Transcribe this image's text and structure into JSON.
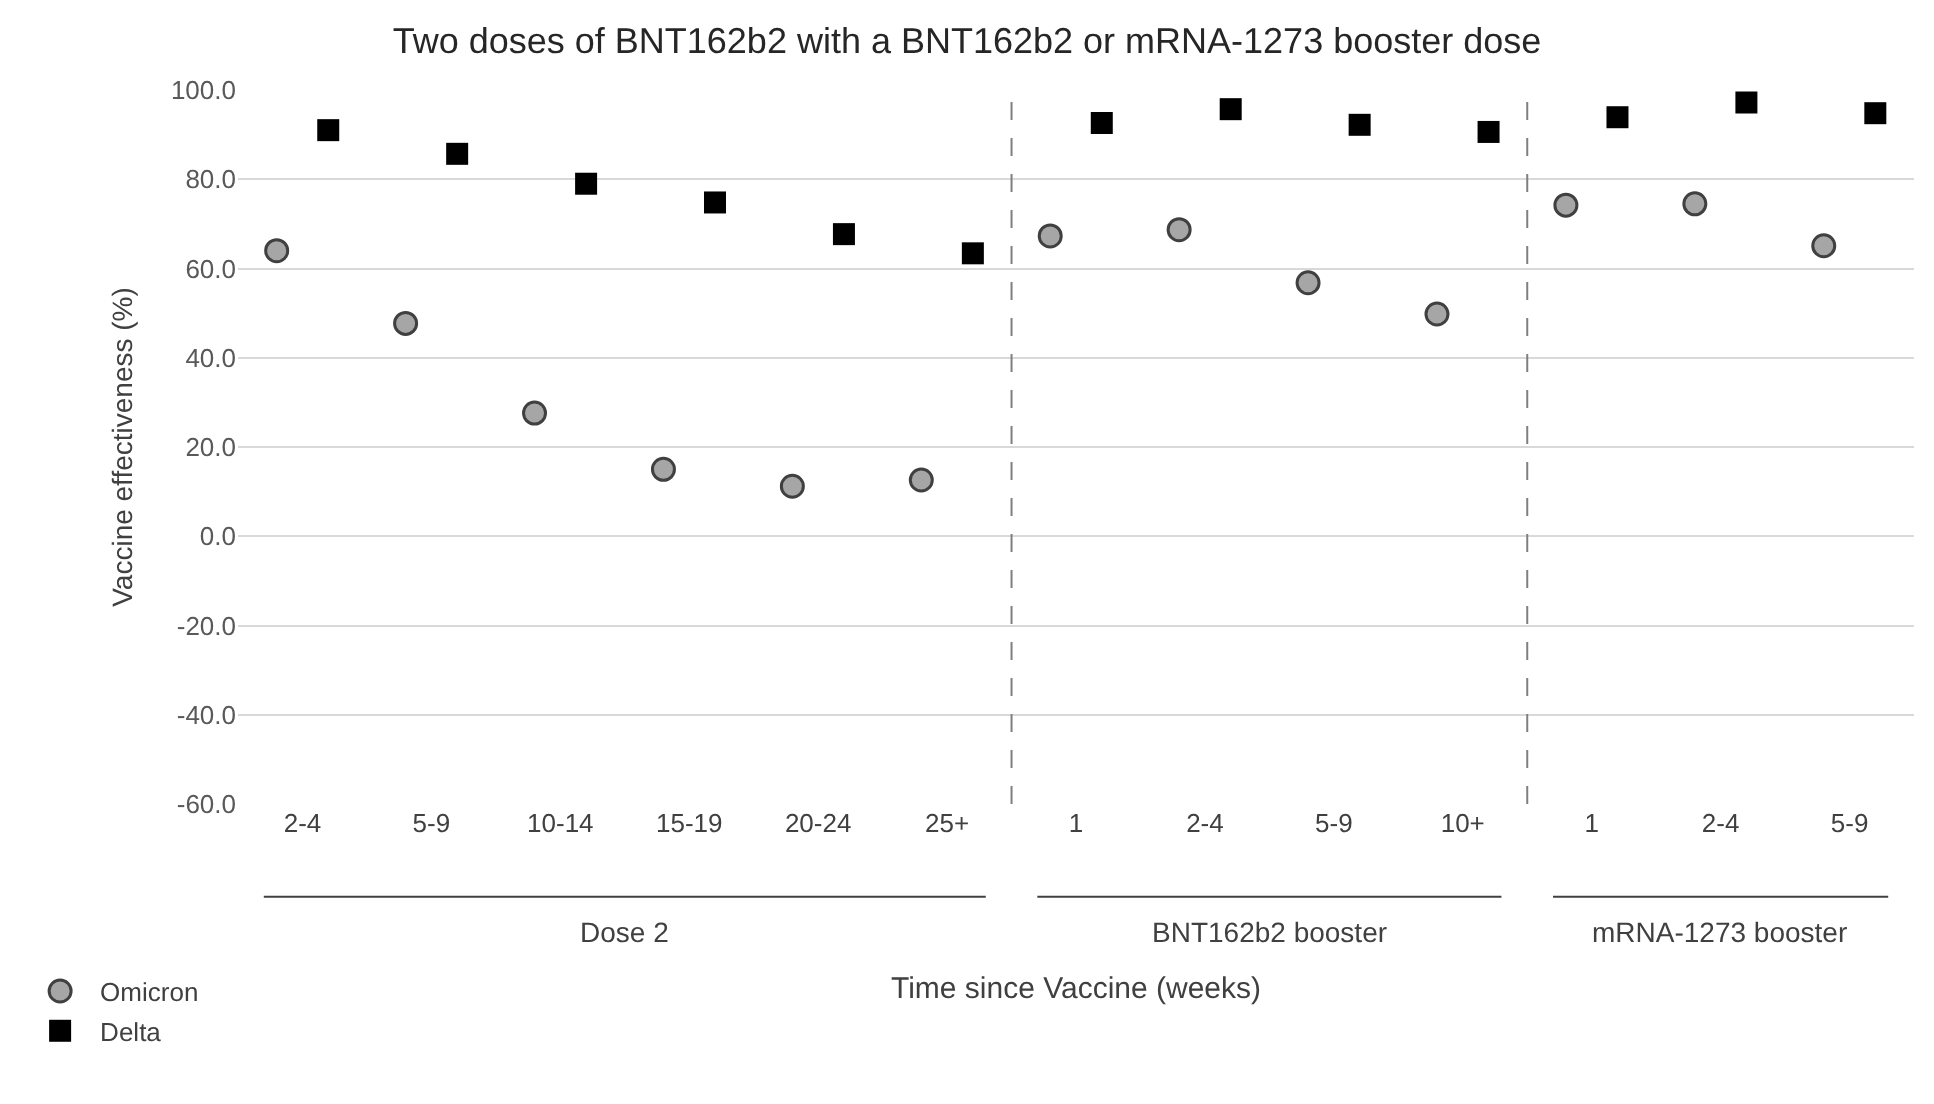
{
  "chart_data": {
    "type": "scatter",
    "title": "Two doses of BNT162b2 with a BNT162b2 or mRNA-1273 booster dose",
    "xlabel": "Time since Vaccine (weeks)",
    "ylabel": "Vaccine effectiveness (%)",
    "categories": [
      "2-4",
      "5-9",
      "10-14",
      "15-19",
      "20-24",
      "25+",
      "1",
      "2-4",
      "5-9",
      "10+",
      "1",
      "2-4",
      "5-9"
    ],
    "series": [
      {
        "name": "Omicron",
        "color": "#a6a6a6",
        "marker": "circle",
        "values": [
          64,
          47.7,
          27.6,
          15,
          11.2,
          12.6,
          67.3,
          68.7,
          56.8,
          49.8,
          74.2,
          74.5,
          65.1
        ]
      },
      {
        "name": "Delta",
        "color": "#000000",
        "marker": "square",
        "values": [
          91,
          85.7,
          79,
          74.8,
          67.7,
          63.4,
          92.6,
          95.7,
          92.2,
          90.6,
          93.9,
          97.2,
          94.8
        ]
      }
    ],
    "ylim": [
      -60,
      100
    ],
    "yticks": [
      {
        "value": -60,
        "label": "-60.0"
      },
      {
        "value": -40,
        "label": "-40.0"
      },
      {
        "value": -20,
        "label": "-20.0"
      },
      {
        "value": 0,
        "label": "0.0"
      },
      {
        "value": 20,
        "label": "20.0"
      },
      {
        "value": 40,
        "label": "40.0"
      },
      {
        "value": 60,
        "label": "60.0"
      },
      {
        "value": 80,
        "label": "80.0"
      },
      {
        "value": 100,
        "label": "100.0"
      }
    ],
    "annotations": [
      "Dose 2",
      "BNT162b2 booster",
      "mRNA-1273 booster"
    ],
    "grid": "y",
    "legend": "bottom left"
  }
}
